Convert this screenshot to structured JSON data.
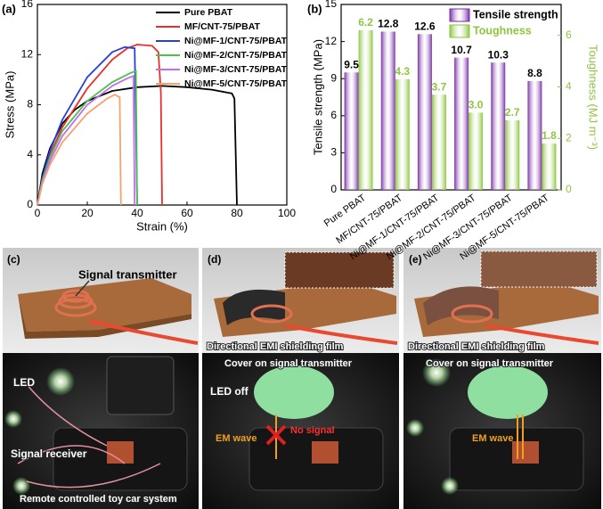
{
  "chart_data": [
    {
      "type": "line",
      "panel_label": "(a)",
      "x_label": "Strain (%)",
      "y_label": "Stress (MPa)",
      "xlim": [
        0,
        100
      ],
      "xticks": [
        0,
        20,
        40,
        60,
        80,
        100
      ],
      "ylim": [
        0,
        16
      ],
      "yticks": [
        0,
        4,
        8,
        12,
        16
      ],
      "legend": "upper right",
      "series": [
        {
          "name": "Pure PBAT",
          "color": "#000000",
          "x": [
            0,
            2,
            5,
            10,
            15,
            20,
            30,
            40,
            50,
            60,
            70,
            78,
            79,
            80
          ],
          "values": [
            0,
            2.5,
            4.5,
            6.5,
            7.6,
            8.3,
            9.1,
            9.4,
            9.5,
            9.4,
            9.2,
            8.9,
            8.5,
            0
          ]
        },
        {
          "name": "MF/CNT-75/PBAT",
          "color": "#e8302a",
          "x": [
            0,
            2,
            5,
            10,
            20,
            30,
            36,
            40,
            46,
            48.5,
            49.5,
            50
          ],
          "values": [
            0,
            2,
            4,
            6.2,
            9.3,
            11.6,
            12.5,
            12.8,
            12.7,
            12.2,
            9,
            0
          ]
        },
        {
          "name": "Ni@MF-1/CNT-75/PBAT",
          "color": "#2a3fd6",
          "x": [
            0,
            2,
            5,
            10,
            20,
            30,
            35,
            39,
            40
          ],
          "values": [
            0,
            2.2,
            4.3,
            6.8,
            10.2,
            12.2,
            12.6,
            12.5,
            0
          ]
        },
        {
          "name": "Ni@MF-2/CNT-75/PBAT",
          "color": "#4cc24c",
          "x": [
            0,
            2,
            5,
            10,
            20,
            30,
            37,
            39.5,
            40
          ],
          "values": [
            0,
            2,
            3.8,
            5.9,
            8.3,
            9.8,
            10.5,
            10.7,
            0
          ]
        },
        {
          "name": "Ni@MF-3/CNT-75/PBAT",
          "color": "#c86af0",
          "x": [
            0,
            2,
            5,
            10,
            20,
            30,
            36,
            38.5,
            39
          ],
          "values": [
            0,
            1.8,
            3.5,
            5.5,
            8,
            9.5,
            10.1,
            10.3,
            0
          ]
        },
        {
          "name": "Ni@MF-5/CNT-75/PBAT",
          "color": "#f8a070",
          "x": [
            0,
            2,
            5,
            10,
            20,
            28,
            31,
            33,
            33.5
          ],
          "values": [
            0,
            1.7,
            3.2,
            5,
            7.3,
            8.5,
            8.8,
            8.6,
            0
          ]
        }
      ]
    },
    {
      "type": "bar",
      "panel_label": "(b)",
      "y_label": "Tensile strength (MPa)",
      "y2_label": "Toughness (MJ m⁻³)",
      "categories": [
        "Pure PBAT",
        "MF/CNT-75/PBAT",
        "Ni@MF-1/CNT-75/PBAT",
        "Ni@MF-2/CNT-75/PBAT",
        "Ni@MF-3/CNT-75/PBAT",
        "Ni@MF-5/CNT-75/PBAT"
      ],
      "ylim": [
        0,
        15
      ],
      "yticks": [
        0,
        3,
        6,
        9,
        12,
        15
      ],
      "y2lim": [
        0,
        7.2
      ],
      "y2ticks": [
        0,
        2,
        4,
        6
      ],
      "legend": "upper right",
      "series": [
        {
          "name": "Tensile strength",
          "color": "#7b2fa8",
          "values": [
            9.5,
            12.8,
            12.6,
            10.7,
            10.3,
            8.8
          ],
          "value_labels": [
            "9.5",
            "12.8",
            "12.6",
            "10.7",
            "10.3",
            "8.8"
          ]
        },
        {
          "name": "Toughness",
          "color": "#8dc63f",
          "axis": "y2",
          "values": [
            6.2,
            4.3,
            3.7,
            3.0,
            2.7,
            1.8
          ],
          "value_labels": [
            "6.2",
            "4.3",
            "3.7",
            "3.0",
            "2.7",
            "1.8"
          ]
        }
      ]
    }
  ],
  "panels": [
    {
      "label": "(c)",
      "texts": [
        "Signal transmitter",
        "LED",
        "Signal receiver",
        "Remote controlled toy car system"
      ]
    },
    {
      "label": "(d)",
      "texts": [
        "Directional EMI shielding film",
        "Cover on signal transmitter",
        "LED off",
        "EM wave",
        "No signal"
      ]
    },
    {
      "label": "(e)",
      "texts": [
        "Directional EMI shielding film",
        "Cover on signal transmitter",
        "EM wave"
      ]
    }
  ]
}
